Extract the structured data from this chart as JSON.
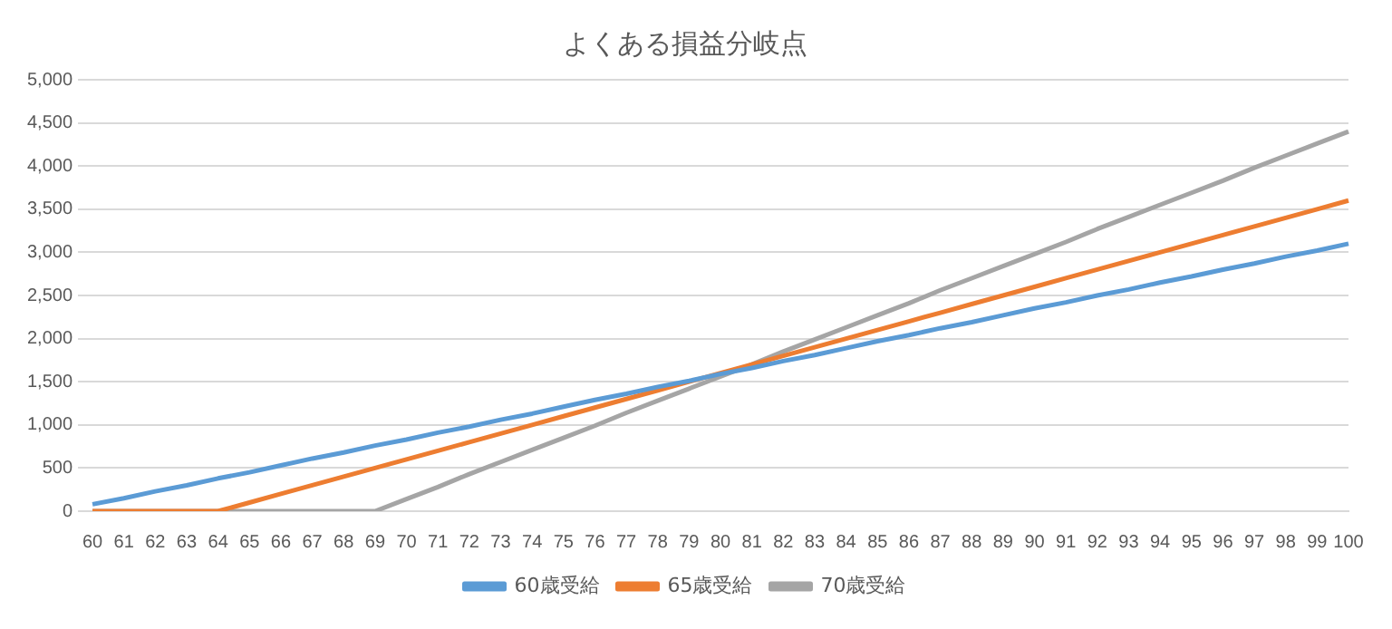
{
  "chart_data": {
    "type": "line",
    "title": "よくある損益分岐点",
    "categories": [
      "60",
      "61",
      "62",
      "63",
      "64",
      "65",
      "66",
      "67",
      "68",
      "69",
      "70",
      "71",
      "72",
      "73",
      "74",
      "75",
      "76",
      "77",
      "78",
      "79",
      "80",
      "81",
      "82",
      "83",
      "84",
      "85",
      "86",
      "87",
      "88",
      "89",
      "90",
      "91",
      "92",
      "93",
      "94",
      "95",
      "96",
      "97",
      "98",
      "99",
      "100"
    ],
    "series": [
      {
        "name": "60歳受給",
        "color": "#5b9bd5",
        "values": [
          80,
          150,
          230,
          300,
          380,
          450,
          530,
          610,
          680,
          760,
          830,
          910,
          980,
          1060,
          1130,
          1210,
          1290,
          1360,
          1440,
          1510,
          1590,
          1660,
          1740,
          1810,
          1890,
          1970,
          2040,
          2120,
          2190,
          2270,
          2350,
          2420,
          2500,
          2570,
          2650,
          2720,
          2800,
          2870,
          2950,
          3020,
          3100
        ]
      },
      {
        "name": "65歳受給",
        "color": "#ed7d31",
        "values": [
          0,
          0,
          0,
          0,
          0,
          100,
          200,
          300,
          400,
          500,
          600,
          700,
          800,
          900,
          1000,
          1100,
          1200,
          1300,
          1400,
          1500,
          1600,
          1700,
          1800,
          1900,
          2000,
          2100,
          2200,
          2300,
          2400,
          2500,
          2600,
          2700,
          2800,
          2900,
          3000,
          3100,
          3200,
          3300,
          3400,
          3500,
          3600
        ]
      },
      {
        "name": "70歳受給",
        "color": "#a5a5a5",
        "values": [
          0,
          0,
          0,
          0,
          0,
          0,
          0,
          0,
          0,
          0,
          140,
          280,
          430,
          570,
          710,
          850,
          990,
          1140,
          1280,
          1420,
          1560,
          1700,
          1850,
          1990,
          2130,
          2270,
          2410,
          2560,
          2700,
          2840,
          2980,
          3120,
          3270,
          3410,
          3550,
          3690,
          3830,
          3980,
          4120,
          4260,
          4400
        ]
      }
    ],
    "ylim": [
      0,
      5000
    ],
    "yticks": [
      0,
      500,
      {
        "value": 1000,
        "label": "1,000"
      },
      {
        "value": 1500,
        "label": "1,500"
      },
      {
        "value": 2000,
        "label": "2,000"
      },
      {
        "value": 2500,
        "label": "2,500"
      },
      {
        "value": 3000,
        "label": "3,000"
      },
      {
        "value": 3500,
        "label": "3,500"
      },
      {
        "value": 4000,
        "label": "4,000"
      },
      {
        "value": 4500,
        "label": "4,500"
      },
      {
        "value": 5000,
        "label": "5,000"
      }
    ],
    "grid": "y",
    "legend": "bottom",
    "marker": "none",
    "line_style": "solid"
  }
}
